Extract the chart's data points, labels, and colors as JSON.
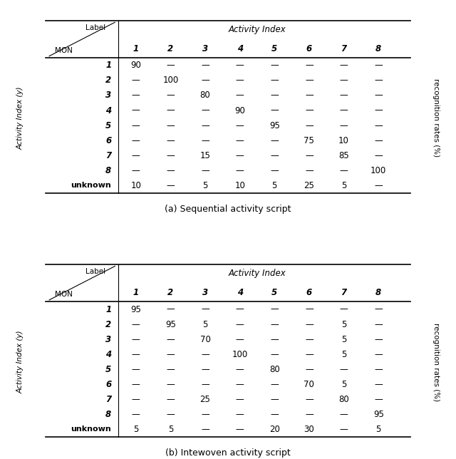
{
  "title_a": "(a) Sequential activity script",
  "title_b": "(b) Intewoven activity script",
  "header_label": "Label",
  "header_mon": "MON",
  "header_activity_index": "Activity Index",
  "col_labels": [
    "1",
    "2",
    "3",
    "4",
    "5",
    "6",
    "7",
    "8"
  ],
  "row_labels": [
    "1",
    "2",
    "3",
    "4",
    "5",
    "6",
    "7",
    "8",
    "unknown"
  ],
  "ylabel_rotated": "Activity Index (y)",
  "ylabel_right": "recognition rates (%)",
  "table_a": [
    [
      "90",
      "—",
      "—",
      "—",
      "—",
      "—",
      "—",
      "—"
    ],
    [
      "—",
      "100",
      "—",
      "—",
      "—",
      "—",
      "—",
      "—"
    ],
    [
      "—",
      "—",
      "80",
      "—",
      "—",
      "—",
      "—",
      "—"
    ],
    [
      "—",
      "—",
      "—",
      "90",
      "—",
      "—",
      "—",
      "—"
    ],
    [
      "—",
      "—",
      "—",
      "—",
      "95",
      "—",
      "—",
      "—"
    ],
    [
      "—",
      "—",
      "—",
      "—",
      "—",
      "75",
      "10",
      "—"
    ],
    [
      "—",
      "—",
      "15",
      "—",
      "—",
      "—",
      "85",
      "—"
    ],
    [
      "—",
      "—",
      "—",
      "—",
      "—",
      "—",
      "—",
      "100"
    ],
    [
      "10",
      "—",
      "5",
      "10",
      "5",
      "25",
      "5",
      "—"
    ]
  ],
  "table_b": [
    [
      "95",
      "—",
      "—",
      "—",
      "—",
      "—",
      "—",
      "—"
    ],
    [
      "—",
      "95",
      "5",
      "—",
      "—",
      "—",
      "5",
      "—"
    ],
    [
      "—",
      "—",
      "70",
      "—",
      "—",
      "—",
      "5",
      "—"
    ],
    [
      "—",
      "—",
      "—",
      "100",
      "—",
      "—",
      "5",
      "—"
    ],
    [
      "—",
      "—",
      "—",
      "—",
      "80",
      "—",
      "—",
      "—"
    ],
    [
      "—",
      "—",
      "—",
      "—",
      "—",
      "70",
      "5",
      "—"
    ],
    [
      "—",
      "—",
      "25",
      "—",
      "—",
      "—",
      "80",
      "—"
    ],
    [
      "—",
      "—",
      "—",
      "—",
      "—",
      "—",
      "—",
      "95"
    ],
    [
      "5",
      "5",
      "—",
      "—",
      "20",
      "30",
      "—",
      "5"
    ]
  ],
  "background_color": "#ffffff",
  "text_color": "#000000"
}
